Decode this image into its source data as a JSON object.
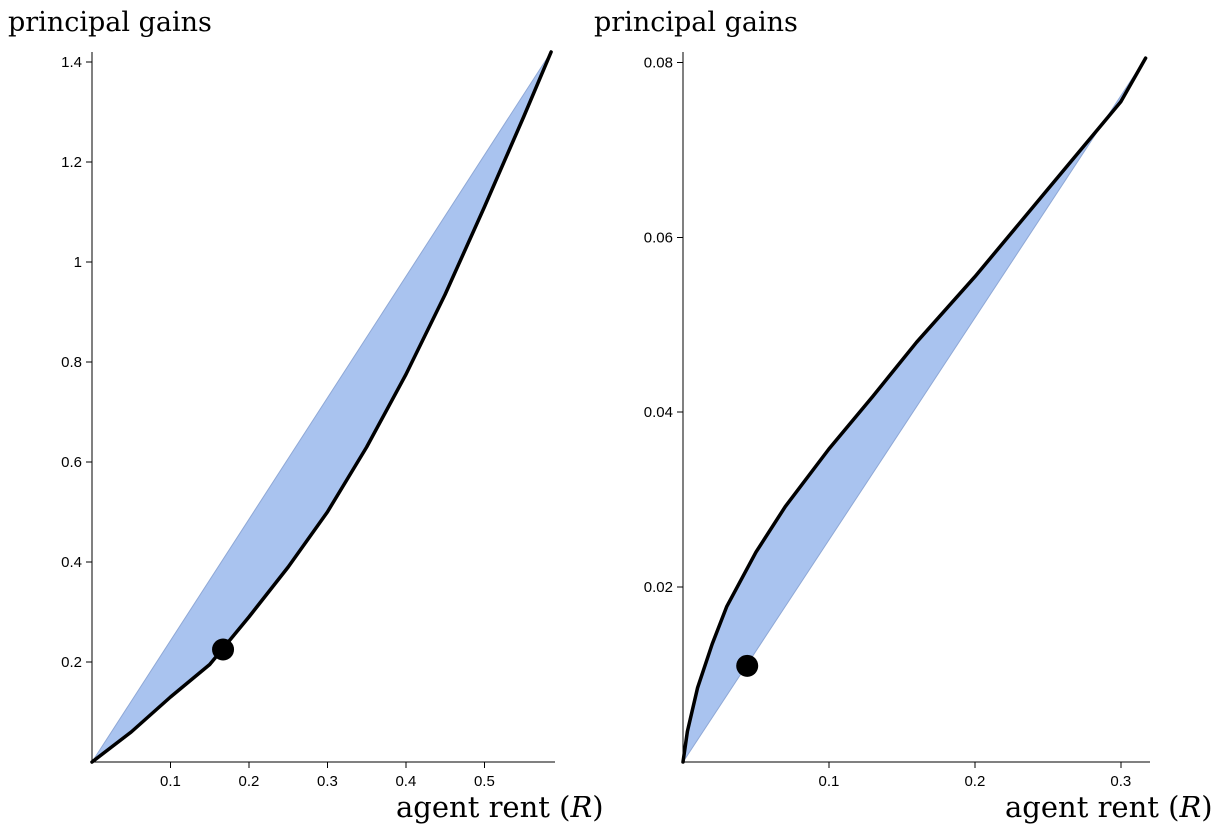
{
  "chart_data": [
    {
      "type": "area",
      "ylabel": "principal gains",
      "xlabel": {
        "text": "agent rent (",
        "var": "R",
        "close": ")"
      },
      "xlim": [
        0,
        0.59
      ],
      "ylim": [
        0,
        1.42
      ],
      "xticks": [
        0.1,
        0.2,
        0.3,
        0.4,
        0.5
      ],
      "xtick_labels": [
        "0.1",
        "0.2",
        "0.3",
        "0.4",
        "0.5"
      ],
      "yticks": [
        0.2,
        0.4,
        0.6,
        0.8,
        1.0,
        1.2,
        1.4
      ],
      "ytick_labels": [
        "0.2",
        "0.4",
        "0.6",
        "0.8",
        "1",
        "1.2",
        "1.4"
      ],
      "grid": false,
      "colors": {
        "fill": "#a9c3ef",
        "line": "#000000",
        "point": "#000000"
      },
      "series": [
        {
          "role": "upper-bound",
          "x": [
            0,
            0.585
          ],
          "y": [
            0,
            1.42
          ]
        },
        {
          "role": "frontier",
          "x": [
            0,
            0.05,
            0.1,
            0.15,
            0.2,
            0.25,
            0.3,
            0.35,
            0.4,
            0.45,
            0.5,
            0.55,
            0.585
          ],
          "y": [
            0,
            0.06,
            0.13,
            0.195,
            0.29,
            0.39,
            0.5,
            0.63,
            0.775,
            0.935,
            1.11,
            1.29,
            1.42
          ]
        }
      ],
      "points": [
        {
          "x": 0.167,
          "y": 0.225
        }
      ]
    },
    {
      "type": "area",
      "ylabel": "principal gains",
      "xlabel": {
        "text": "agent rent (",
        "var": "R",
        "close": ")"
      },
      "xlim": [
        0,
        0.32
      ],
      "ylim": [
        0,
        0.0812
      ],
      "xticks": [
        0.1,
        0.2,
        0.3
      ],
      "xtick_labels": [
        "0.1",
        "0.2",
        "0.3"
      ],
      "yticks": [
        0.02,
        0.04,
        0.06,
        0.08
      ],
      "ytick_labels": [
        "0.02",
        "0.04",
        "0.06",
        "0.08"
      ],
      "grid": false,
      "colors": {
        "fill": "#a9c3ef",
        "line": "#000000",
        "point": "#000000"
      },
      "series": [
        {
          "role": "lower-bound",
          "x": [
            0,
            0.317
          ],
          "y": [
            0,
            0.0805
          ]
        },
        {
          "role": "frontier",
          "x": [
            0,
            0.003,
            0.01,
            0.02,
            0.03,
            0.05,
            0.07,
            0.1,
            0.13,
            0.16,
            0.2,
            0.25,
            0.3,
            0.317
          ],
          "y": [
            0,
            0.0035,
            0.0085,
            0.0135,
            0.0178,
            0.024,
            0.0292,
            0.0358,
            0.0418,
            0.048,
            0.0555,
            0.0655,
            0.0755,
            0.0805
          ]
        }
      ],
      "points": [
        {
          "x": 0.044,
          "y": 0.011
        }
      ]
    }
  ]
}
